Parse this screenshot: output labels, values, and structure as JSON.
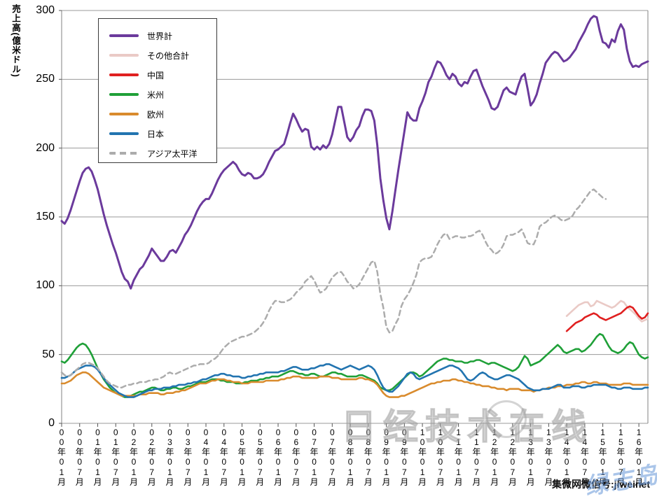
{
  "y_axis": {
    "title": "売上高(億米ドル)"
  },
  "watermarks": {
    "center": "日经技术在线",
    "wechat": "集微网微信号:jiweinet",
    "blue_script": "绿志岛"
  },
  "legend": {
    "items": [
      {
        "label": "世界計",
        "color": "#6B3A9C",
        "dashed": false
      },
      {
        "label": "その他合計",
        "color": "#EACAC6",
        "dashed": false
      },
      {
        "label": "中国",
        "color": "#E02020",
        "dashed": false
      },
      {
        "label": "米州",
        "color": "#1FA038",
        "dashed": false
      },
      {
        "label": "欧州",
        "color": "#D98B2D",
        "dashed": false
      },
      {
        "label": "日本",
        "color": "#2274B0",
        "dashed": false
      },
      {
        "label": "アジア太平洋",
        "color": "#ACACAC",
        "dashed": true
      }
    ]
  },
  "chart_data": {
    "type": "line",
    "title": "",
    "ylabel": "売上高(億米ドル)",
    "xlabel": "",
    "ylim": [
      0,
      300
    ],
    "y_ticks": [
      0,
      50,
      100,
      150,
      200,
      250,
      300
    ],
    "grid": "horizontal",
    "legend_position": "upper-left-inside",
    "x_unit": "month",
    "x_range": [
      "2000-01",
      "2016-04"
    ],
    "x_tick_interval_months": 6,
    "x_tick_labels": [
      "00年01月",
      "00年07月",
      "01年01月",
      "01年07月",
      "02年01月",
      "02年07月",
      "03年01月",
      "03年07月",
      "04年01月",
      "04年07月",
      "05年01月",
      "05年07月",
      "06年01月",
      "06年07月",
      "07年01月",
      "07年07月",
      "08年01月",
      "08年07月",
      "09年01月",
      "09年07月",
      "10年01月",
      "10年07月",
      "11年01月",
      "11年07月",
      "12年01月",
      "12年07月",
      "13年01月",
      "13年07月",
      "14年01月",
      "14年07月",
      "15年01月",
      "15年07月",
      "16年01月"
    ],
    "series": [
      {
        "name": "世界計",
        "color": "#6B3A9C",
        "width": 3,
        "dash": null,
        "start_month": "2000-01",
        "values": [
          147,
          145,
          149,
          155,
          162,
          169,
          176,
          182,
          185,
          186,
          183,
          177,
          170,
          161,
          152,
          144,
          137,
          130,
          124,
          117,
          110,
          105,
          103,
          98,
          104,
          108,
          112,
          114,
          118,
          122,
          127,
          124,
          121,
          118,
          118,
          121,
          125,
          126,
          124,
          128,
          132,
          137,
          140,
          144,
          149,
          154,
          158,
          161,
          163,
          163,
          167,
          172,
          177,
          181,
          184,
          186,
          188,
          190,
          188,
          184,
          181,
          180,
          182,
          181,
          178,
          178,
          179,
          181,
          185,
          190,
          194,
          198,
          199,
          201,
          203,
          210,
          218,
          225,
          221,
          216,
          212,
          214,
          213,
          201,
          199,
          201,
          199,
          202,
          200,
          203,
          210,
          220,
          230,
          230,
          219,
          208,
          205,
          208,
          213,
          216,
          223,
          228,
          228,
          227,
          220,
          202,
          178,
          162,
          149,
          141,
          154,
          169,
          184,
          198,
          212,
          226,
          222,
          220,
          220,
          229,
          234,
          240,
          248,
          252,
          258,
          263,
          262,
          258,
          253,
          250,
          254,
          252,
          247,
          245,
          248,
          247,
          252,
          256,
          257,
          251,
          245,
          240,
          235,
          229,
          228,
          230,
          236,
          242,
          244,
          241,
          240,
          239,
          246,
          252,
          254,
          243,
          231,
          234,
          239,
          247,
          254,
          262,
          265,
          268,
          270,
          269,
          266,
          263,
          264,
          266,
          269,
          272,
          277,
          281,
          285,
          290,
          294,
          296,
          295,
          285,
          277,
          276,
          273,
          279,
          277,
          285,
          290,
          286,
          272,
          263,
          259,
          260,
          259,
          261,
          262,
          263
        ]
      },
      {
        "name": "その他合計",
        "color": "#EACAC6",
        "width": 2.6,
        "dash": null,
        "start_month": "2014-01",
        "values": [
          78,
          80,
          82,
          84,
          86,
          87,
          88,
          88,
          85,
          86,
          89,
          88,
          87,
          86,
          85,
          84,
          85,
          87,
          89,
          88,
          85,
          83,
          81,
          79,
          76,
          74,
          75,
          76
        ]
      },
      {
        "name": "中国",
        "color": "#E02020",
        "width": 2.6,
        "dash": null,
        "start_month": "2014-01",
        "values": [
          67,
          69,
          71,
          73,
          74,
          75,
          77,
          78,
          79,
          80,
          79,
          77,
          76,
          75,
          76,
          77,
          78,
          79,
          80,
          82,
          84,
          85,
          84,
          81,
          78,
          76,
          77,
          80
        ]
      },
      {
        "name": "米州",
        "color": "#1FA038",
        "width": 2.6,
        "dash": null,
        "start_month": "2000-01",
        "values": [
          45,
          44,
          46,
          49,
          52,
          55,
          57,
          58,
          57,
          54,
          50,
          45,
          40,
          36,
          32,
          29,
          26,
          24,
          22,
          21,
          20,
          19,
          19,
          20,
          21,
          22,
          23,
          23,
          24,
          25,
          26,
          26,
          25,
          24,
          24,
          25,
          25,
          26,
          26,
          25,
          25,
          26,
          27,
          27,
          28,
          29,
          30,
          30,
          30,
          31,
          32,
          32,
          32,
          31,
          31,
          30,
          30,
          30,
          29,
          29,
          29,
          30,
          30,
          31,
          31,
          31,
          32,
          32,
          33,
          33,
          34,
          34,
          34,
          35,
          36,
          37,
          38,
          38,
          37,
          36,
          36,
          35,
          35,
          36,
          36,
          35,
          34,
          34,
          35,
          36,
          37,
          37,
          36,
          36,
          35,
          34,
          34,
          34,
          34,
          35,
          35,
          34,
          33,
          32,
          31,
          29,
          26,
          25,
          24,
          24,
          25,
          27,
          29,
          31,
          33,
          35,
          37,
          37,
          36,
          34,
          35,
          37,
          39,
          41,
          43,
          45,
          46,
          47,
          47,
          46,
          46,
          45,
          45,
          45,
          44,
          44,
          45,
          45,
          46,
          46,
          45,
          44,
          43,
          44,
          44,
          43,
          42,
          41,
          40,
          39,
          38,
          39,
          41,
          45,
          49,
          47,
          42,
          43,
          44,
          45,
          47,
          49,
          51,
          53,
          55,
          57,
          55,
          52,
          51,
          52,
          53,
          54,
          54,
          52,
          53,
          55,
          57,
          60,
          63,
          65,
          64,
          60,
          56,
          53,
          52,
          51,
          52,
          54,
          57,
          59,
          58,
          54,
          50,
          48,
          47,
          48
        ]
      },
      {
        "name": "欧州",
        "color": "#D98B2D",
        "width": 2.6,
        "dash": null,
        "start_month": "2000-01",
        "values": [
          29,
          29,
          30,
          31,
          33,
          35,
          36,
          37,
          37,
          36,
          34,
          32,
          30,
          28,
          26,
          25,
          24,
          23,
          22,
          21,
          20,
          20,
          20,
          20,
          20,
          20,
          21,
          21,
          21,
          22,
          22,
          22,
          22,
          21,
          21,
          22,
          22,
          22,
          23,
          23,
          24,
          24,
          25,
          26,
          27,
          28,
          29,
          29,
          29,
          30,
          31,
          31,
          32,
          32,
          32,
          31,
          31,
          30,
          30,
          30,
          29,
          29,
          29,
          30,
          30,
          30,
          30,
          30,
          31,
          31,
          31,
          31,
          31,
          32,
          32,
          33,
          33,
          34,
          34,
          34,
          33,
          33,
          33,
          33,
          33,
          33,
          34,
          34,
          34,
          34,
          33,
          33,
          33,
          32,
          32,
          32,
          32,
          32,
          32,
          33,
          33,
          32,
          32,
          31,
          30,
          28,
          25,
          22,
          20,
          19,
          19,
          19,
          19,
          20,
          20,
          21,
          22,
          23,
          24,
          25,
          26,
          27,
          28,
          29,
          29,
          30,
          30,
          31,
          31,
          31,
          32,
          32,
          31,
          31,
          30,
          30,
          29,
          29,
          28,
          28,
          27,
          27,
          27,
          26,
          26,
          25,
          25,
          25,
          24,
          25,
          25,
          25,
          25,
          24,
          24,
          24,
          24,
          23,
          24,
          24,
          25,
          25,
          26,
          26,
          26,
          27,
          27,
          27,
          28,
          28,
          28,
          29,
          29,
          30,
          30,
          29,
          29,
          30,
          30,
          29,
          29,
          29,
          28,
          28,
          28,
          28,
          28,
          29,
          29,
          29,
          28,
          28,
          28,
          28,
          28,
          28
        ]
      },
      {
        "name": "日本",
        "color": "#2274B0",
        "width": 2.6,
        "dash": null,
        "start_month": "2000-01",
        "values": [
          33,
          33,
          34,
          35,
          37,
          39,
          40,
          41,
          42,
          42,
          42,
          41,
          39,
          36,
          33,
          30,
          28,
          26,
          24,
          22,
          21,
          20,
          19,
          19,
          19,
          20,
          21,
          22,
          23,
          24,
          24,
          25,
          25,
          25,
          26,
          26,
          26,
          27,
          27,
          28,
          28,
          28,
          29,
          29,
          30,
          30,
          31,
          32,
          32,
          33,
          34,
          35,
          35,
          36,
          36,
          35,
          35,
          34,
          34,
          34,
          33,
          33,
          34,
          34,
          35,
          35,
          36,
          36,
          37,
          37,
          37,
          37,
          37,
          38,
          38,
          39,
          40,
          41,
          41,
          40,
          39,
          39,
          39,
          40,
          40,
          41,
          42,
          42,
          43,
          43,
          42,
          41,
          40,
          39,
          40,
          41,
          42,
          41,
          40,
          39,
          40,
          41,
          42,
          41,
          39,
          35,
          30,
          26,
          24,
          23,
          23,
          25,
          27,
          30,
          33,
          36,
          37,
          36,
          33,
          32,
          33,
          34,
          35,
          36,
          37,
          38,
          39,
          40,
          41,
          42,
          42,
          41,
          40,
          38,
          35,
          32,
          31,
          32,
          34,
          36,
          37,
          36,
          34,
          33,
          32,
          32,
          33,
          34,
          35,
          35,
          34,
          33,
          32,
          30,
          28,
          26,
          25,
          24,
          24,
          24,
          25,
          25,
          25,
          26,
          27,
          28,
          28,
          26,
          26,
          26,
          27,
          27,
          27,
          26,
          26,
          27,
          27,
          28,
          28,
          28,
          28,
          28,
          27,
          26,
          26,
          25,
          25,
          26,
          26,
          26,
          25,
          25,
          25,
          25,
          26,
          26
        ]
      },
      {
        "name": "アジア太平洋",
        "color": "#ACACAC",
        "width": 2.5,
        "dash": [
          7,
          5
        ],
        "start_month": "2000-01",
        "values": [
          37,
          35,
          34,
          35,
          37,
          39,
          41,
          43,
          44,
          44,
          43,
          42,
          40,
          37,
          34,
          31,
          29,
          28,
          27,
          26,
          26,
          27,
          28,
          28,
          29,
          29,
          30,
          30,
          30,
          31,
          31,
          32,
          32,
          33,
          34,
          36,
          37,
          36,
          36,
          37,
          38,
          39,
          40,
          41,
          42,
          42,
          43,
          43,
          43,
          44,
          46,
          47,
          49,
          52,
          55,
          57,
          59,
          60,
          61,
          62,
          63,
          63,
          64,
          65,
          66,
          68,
          70,
          73,
          77,
          82,
          86,
          89,
          89,
          88,
          88,
          89,
          90,
          92,
          95,
          97,
          99,
          103,
          105,
          107,
          104,
          99,
          95,
          96,
          98,
          102,
          106,
          108,
          110,
          110,
          107,
          103,
          101,
          98,
          99,
          101,
          105,
          109,
          113,
          117,
          118,
          110,
          94,
          84,
          70,
          66,
          67,
          72,
          76,
          85,
          90,
          93,
          97,
          102,
          108,
          117,
          119,
          120,
          120,
          121,
          125,
          130,
          134,
          137,
          138,
          134,
          135,
          136,
          136,
          135,
          135,
          136,
          136,
          137,
          139,
          140,
          137,
          132,
          128,
          126,
          123,
          124,
          126,
          130,
          136,
          137,
          137,
          138,
          139,
          141,
          136,
          131,
          130,
          130,
          135,
          143,
          145,
          146,
          148,
          150,
          151,
          150,
          148,
          147,
          148,
          149,
          151,
          155,
          157,
          160,
          163,
          166,
          169,
          170,
          168,
          166,
          164,
          163
        ]
      }
    ]
  }
}
